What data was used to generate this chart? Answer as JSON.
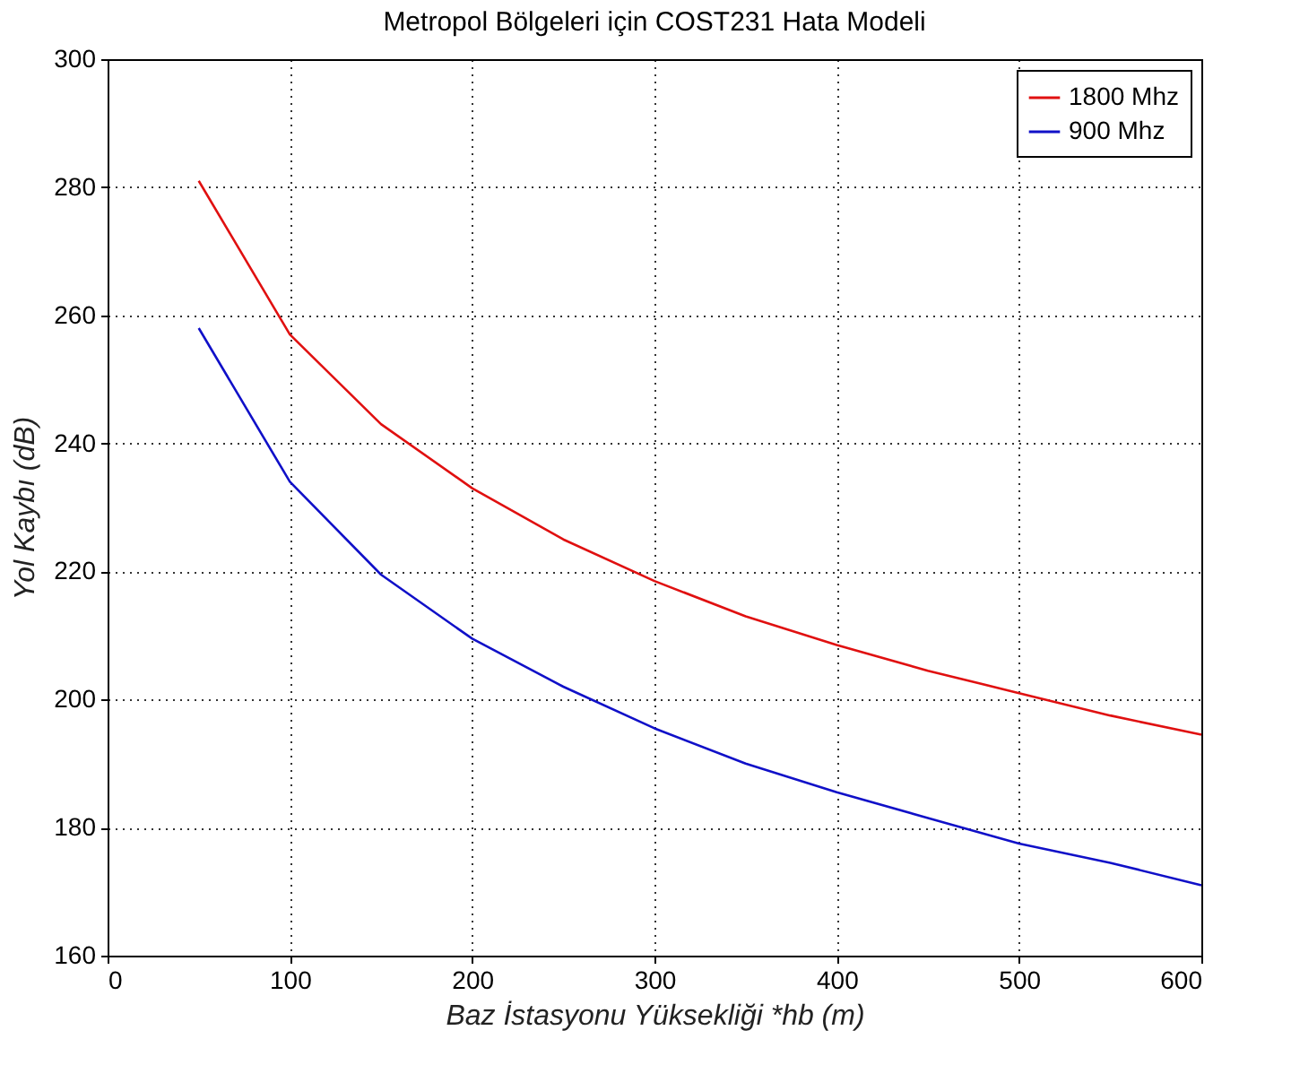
{
  "chart_data": {
    "type": "line",
    "title": "Metropol Bölgeleri için COST231 Hata Modeli",
    "xlabel": "Baz İstasyonu Yüksekliği *hb (m)",
    "ylabel": "Yol Kaybı (dB)",
    "x": [
      50,
      100,
      150,
      200,
      250,
      300,
      350,
      400,
      450,
      500,
      550,
      600
    ],
    "series": [
      {
        "name": "1800 Mhz",
        "color": "#e01010",
        "values": [
          281,
          257,
          243,
          233,
          225,
          218.5,
          213,
          208.5,
          204.5,
          201,
          197.5,
          194.5
        ]
      },
      {
        "name": "900 Mhz",
        "color": "#1010c8",
        "values": [
          258,
          234,
          219.5,
          209.5,
          202,
          195.5,
          190,
          185.5,
          181.5,
          177.5,
          174.5,
          171
        ]
      }
    ],
    "xlim": [
      0,
      600
    ],
    "xticks": [
      0,
      100,
      200,
      300,
      400,
      500,
      600
    ],
    "ylim": [
      160,
      300
    ],
    "yticks": [
      160,
      180,
      200,
      220,
      240,
      260,
      280,
      300
    ],
    "grid": true,
    "legend": "top right"
  }
}
